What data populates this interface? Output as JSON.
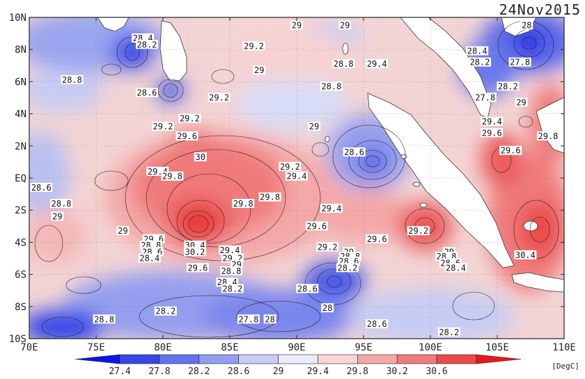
{
  "date": "24Nov2015",
  "unit": "[DegC]",
  "map": {
    "lon_range": [
      70,
      110
    ],
    "lat_range": [
      -10,
      10
    ],
    "lon_ticks": [
      "70E",
      "75E",
      "80E",
      "85E",
      "90E",
      "95E",
      "100E",
      "105E",
      "110E"
    ],
    "lat_ticks": [
      "10N",
      "8N",
      "6N",
      "4N",
      "2N",
      "EQ",
      "2S",
      "4S",
      "6S",
      "8S",
      "10S"
    ],
    "contour_labels": [
      {
        "text": "28.4",
        "lon": 78.5,
        "lat": 8.7
      },
      {
        "text": "28.2",
        "lon": 78.8,
        "lat": 8.3
      },
      {
        "text": "29.2",
        "lon": 86.8,
        "lat": 8.2
      },
      {
        "text": "29",
        "lon": 90.0,
        "lat": 9.5
      },
      {
        "text": "29",
        "lon": 93.6,
        "lat": 9.5
      },
      {
        "text": "28",
        "lon": 107.2,
        "lat": 9.5
      },
      {
        "text": "28.4",
        "lon": 103.5,
        "lat": 7.9
      },
      {
        "text": "28.2",
        "lon": 103.7,
        "lat": 7.2
      },
      {
        "text": "28.8",
        "lon": 93.5,
        "lat": 7.1
      },
      {
        "text": "29.4",
        "lon": 96.0,
        "lat": 7.1
      },
      {
        "text": "27.8",
        "lon": 106.7,
        "lat": 7.2
      },
      {
        "text": "29",
        "lon": 87.2,
        "lat": 6.7
      },
      {
        "text": "28.8",
        "lon": 73.2,
        "lat": 6.1
      },
      {
        "text": "28.8",
        "lon": 92.6,
        "lat": 5.7
      },
      {
        "text": "28.6",
        "lon": 78.8,
        "lat": 5.3
      },
      {
        "text": "29.2",
        "lon": 84.2,
        "lat": 5.0
      },
      {
        "text": "27.8",
        "lon": 104.1,
        "lat": 5.0
      },
      {
        "text": "28.2",
        "lon": 105.8,
        "lat": 5.7
      },
      {
        "text": "29.2",
        "lon": 82.0,
        "lat": 3.7
      },
      {
        "text": "29.2",
        "lon": 80.0,
        "lat": 3.2
      },
      {
        "text": "29",
        "lon": 91.3,
        "lat": 3.2
      },
      {
        "text": "29.4",
        "lon": 104.6,
        "lat": 3.5
      },
      {
        "text": "29",
        "lon": 106.8,
        "lat": 4.7
      },
      {
        "text": "29.6",
        "lon": 81.8,
        "lat": 2.6
      },
      {
        "text": "29.6",
        "lon": 104.6,
        "lat": 2.8
      },
      {
        "text": "29.8",
        "lon": 108.8,
        "lat": 2.6
      },
      {
        "text": "28.6",
        "lon": 94.3,
        "lat": 1.6
      },
      {
        "text": "29.6",
        "lon": 106.0,
        "lat": 1.7
      },
      {
        "text": "30",
        "lon": 82.8,
        "lat": 1.3
      },
      {
        "text": "29.2",
        "lon": 89.5,
        "lat": 0.7
      },
      {
        "text": "29.4",
        "lon": 90.0,
        "lat": 0.1
      },
      {
        "text": "29.4",
        "lon": 79.6,
        "lat": 0.4
      },
      {
        "text": "29.8",
        "lon": 80.7,
        "lat": 0.1
      },
      {
        "text": "28.6",
        "lon": 70.9,
        "lat": -0.6
      },
      {
        "text": "29.8",
        "lon": 88.0,
        "lat": -1.2
      },
      {
        "text": "28.8",
        "lon": 72.4,
        "lat": -1.6
      },
      {
        "text": "29.8",
        "lon": 86.0,
        "lat": -1.6
      },
      {
        "text": "29.4",
        "lon": 92.6,
        "lat": -1.9
      },
      {
        "text": "29",
        "lon": 72.1,
        "lat": -2.4
      },
      {
        "text": "29.6",
        "lon": 91.5,
        "lat": -3.0
      },
      {
        "text": "29",
        "lon": 77.0,
        "lat": -3.3
      },
      {
        "text": "29.2",
        "lon": 99.1,
        "lat": -3.3
      },
      {
        "text": "29.6",
        "lon": 96.0,
        "lat": -3.8
      },
      {
        "text": "29.6",
        "lon": 79.3,
        "lat": -3.8
      },
      {
        "text": "28.8",
        "lon": 79.1,
        "lat": -4.2
      },
      {
        "text": "28.6",
        "lon": 79.2,
        "lat": -4.6
      },
      {
        "text": "28.4",
        "lon": 79.0,
        "lat": -5.0
      },
      {
        "text": "30.4",
        "lon": 82.4,
        "lat": -4.2
      },
      {
        "text": "30.2",
        "lon": 82.4,
        "lat": -4.6
      },
      {
        "text": "29.4",
        "lon": 85.0,
        "lat": -4.5
      },
      {
        "text": "29.2",
        "lon": 92.3,
        "lat": -4.3
      },
      {
        "text": "29",
        "lon": 93.9,
        "lat": -4.6
      },
      {
        "text": "28.8",
        "lon": 94.0,
        "lat": -4.9
      },
      {
        "text": "28.6",
        "lon": 93.9,
        "lat": -5.2
      },
      {
        "text": "28.2",
        "lon": 93.8,
        "lat": -5.6
      },
      {
        "text": "29",
        "lon": 101.4,
        "lat": -4.6
      },
      {
        "text": "28.8",
        "lon": 101.2,
        "lat": -4.9
      },
      {
        "text": "28.6",
        "lon": 101.5,
        "lat": -5.3
      },
      {
        "text": "28.4",
        "lon": 101.9,
        "lat": -5.6
      },
      {
        "text": "30.4",
        "lon": 107.1,
        "lat": -4.8
      },
      {
        "text": "29.2",
        "lon": 85.2,
        "lat": -5.0
      },
      {
        "text": "29",
        "lon": 85.5,
        "lat": -5.4
      },
      {
        "text": "29.6",
        "lon": 82.6,
        "lat": -5.6
      },
      {
        "text": "28.8",
        "lon": 85.1,
        "lat": -5.8
      },
      {
        "text": "28.4",
        "lon": 84.8,
        "lat": -6.5
      },
      {
        "text": "28.2",
        "lon": 85.2,
        "lat": -6.9
      },
      {
        "text": "28.6",
        "lon": 90.8,
        "lat": -6.9
      },
      {
        "text": "28",
        "lon": 92.3,
        "lat": -8.1
      },
      {
        "text": "28.2",
        "lon": 80.2,
        "lat": -8.3
      },
      {
        "text": "28.8",
        "lon": 75.6,
        "lat": -8.8
      },
      {
        "text": "27.8",
        "lon": 86.4,
        "lat": -8.8
      },
      {
        "text": "28",
        "lon": 88.0,
        "lat": -8.8
      },
      {
        "text": "28.6",
        "lon": 96.0,
        "lat": -9.1
      },
      {
        "text": "28.2",
        "lon": 101.4,
        "lat": -9.6
      }
    ]
  },
  "colorbar": {
    "labels": [
      "27.4",
      "27.8",
      "28.2",
      "28.6",
      "29",
      "29.4",
      "29.8",
      "30.2",
      "30.6"
    ],
    "colors": [
      "#0a16e6",
      "#3646e8",
      "#6472ec",
      "#949eef",
      "#c6ccf4",
      "#ecebfb",
      "#f8d6d6",
      "#f4a8a8",
      "#f07a7a",
      "#ec4a4a",
      "#e8181a"
    ]
  }
}
